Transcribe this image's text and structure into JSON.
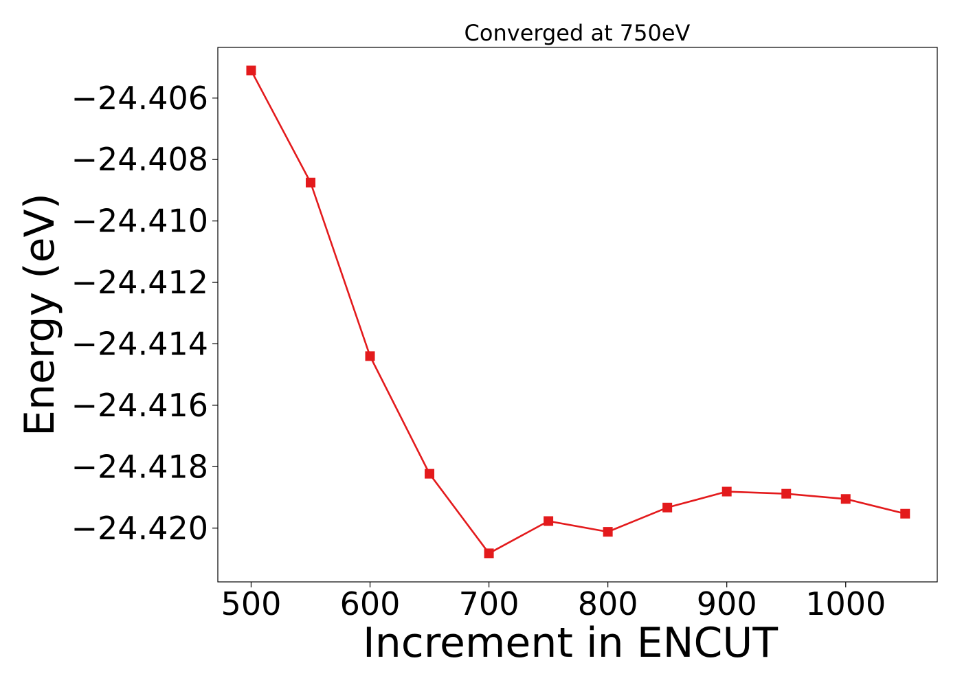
{
  "chart_data": {
    "type": "line",
    "title": "Converged at 750eV",
    "xlabel": "Increment in ENCUT",
    "ylabel": "Energy (eV)",
    "x": [
      500,
      550,
      600,
      650,
      700,
      750,
      800,
      850,
      900,
      950,
      1000,
      1050
    ],
    "series": [
      {
        "values": [
          -24.4051,
          -24.40875,
          -24.4144,
          -24.41823,
          -24.42082,
          -24.41977,
          -24.42012,
          -24.41933,
          -24.41881,
          -24.41888,
          -24.41905,
          -24.41953
        ],
        "color": "#e31a1c",
        "marker": "square"
      }
    ],
    "xlim": [
      472,
      1077
    ],
    "ylim": [
      -24.42175,
      -24.40435
    ],
    "xticks": [
      500,
      600,
      700,
      800,
      900,
      1000
    ],
    "xtick_labels": [
      "500",
      "600",
      "700",
      "800",
      "900",
      "1000"
    ],
    "yticks": [
      -24.406,
      -24.408,
      -24.41,
      -24.412,
      -24.414,
      -24.416,
      -24.418,
      -24.42
    ],
    "ytick_labels": [
      "−24.406",
      "−24.408",
      "−24.410",
      "−24.412",
      "−24.414",
      "−24.416",
      "−24.418",
      "−24.420"
    ],
    "grid": false,
    "legend": "none"
  }
}
